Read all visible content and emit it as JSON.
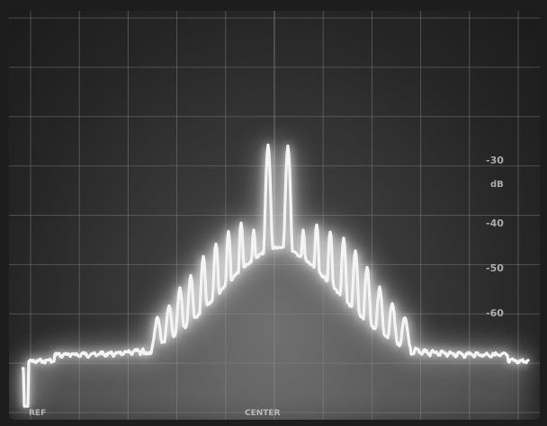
{
  "screen_labels": {
    "ref": "REF",
    "center": "CENTER",
    "right_scale": [
      "-30",
      "-40",
      "-50",
      "-60"
    ],
    "right_unit": "dB"
  },
  "colors": {
    "trace": "#f4f4f4",
    "glow": "#ffffff",
    "grid": "#7a7a7a",
    "screen_bg": "#2a2a2a"
  }
}
